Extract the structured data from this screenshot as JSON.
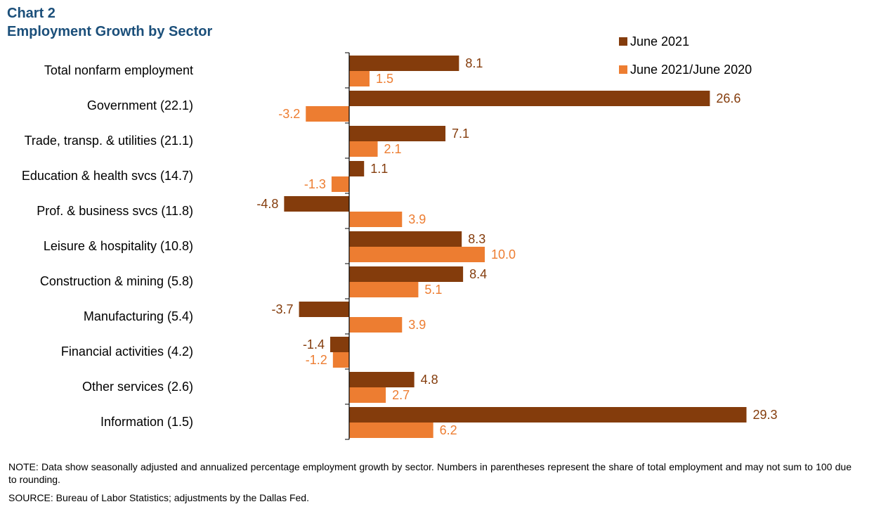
{
  "header": {
    "chart_label": "Chart 2",
    "title": "Employment Growth by Sector"
  },
  "colors": {
    "series1": "#843c0c",
    "series2": "#ed7d31",
    "title": "#1b4f7a"
  },
  "chart_data": {
    "type": "bar",
    "orientation": "horizontal",
    "title": "Employment Growth by Sector",
    "xlabel": "",
    "ylabel": "",
    "xlim": [
      -5,
      30
    ],
    "grid": false,
    "legend_position": "top-right",
    "categories": [
      "Total nonfarm employment",
      "Government (22.1)",
      "Trade, transp. & utilities (21.1)",
      "Education & health svcs (14.7)",
      "Prof. & business svcs (11.8)",
      "Leisure & hospitality (10.8)",
      "Construction & mining (5.8)",
      "Manufacturing (5.4)",
      "Financial activities (4.2)",
      "Other services (2.6)",
      "Information (1.5)"
    ],
    "series": [
      {
        "name": "June 2021",
        "values": [
          8.1,
          26.6,
          7.1,
          1.1,
          -4.8,
          8.3,
          8.4,
          -3.7,
          -1.4,
          4.8,
          29.3
        ],
        "labels": [
          "8.1",
          "26.6",
          "7.1",
          "1.1",
          "-4.8",
          "8.3",
          "8.4",
          "-3.7",
          "-1.4",
          "4.8",
          "29.3"
        ]
      },
      {
        "name": "June 2021/June 2020",
        "values": [
          1.5,
          -3.2,
          2.1,
          -1.3,
          3.9,
          10.0,
          5.1,
          3.9,
          -1.2,
          2.7,
          6.2
        ],
        "labels": [
          "1.5",
          "-3.2",
          "2.1",
          "-1.3",
          "3.9",
          "10.0",
          "5.1",
          "3.9",
          "-1.2",
          "2.7",
          "6.2"
        ]
      }
    ]
  },
  "footer": {
    "note": "NOTE:  Data show seasonally adjusted and annualized percentage employment growth by sector. Numbers in parentheses represent the share of total employment and may not sum to 100 due to rounding.",
    "source": "SOURCE:  Bureau of Labor Statistics; adjustments  by the Dallas Fed."
  }
}
